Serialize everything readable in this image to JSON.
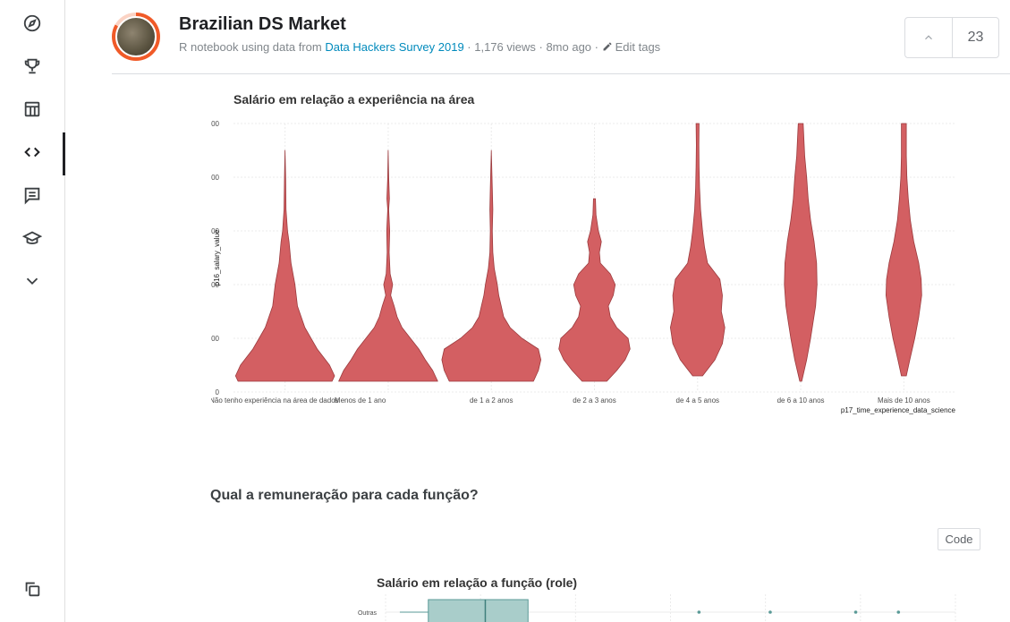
{
  "sidebar": {
    "items": [
      {
        "icon": "compass-icon"
      },
      {
        "icon": "trophy-icon"
      },
      {
        "icon": "table-icon"
      },
      {
        "icon": "code-icon",
        "active": true
      },
      {
        "icon": "comment-icon"
      },
      {
        "icon": "graduation-cap-icon"
      },
      {
        "icon": "chevron-down-icon"
      }
    ],
    "bottom_icon": "copy-icon"
  },
  "header": {
    "title": "Brazilian DS Market",
    "subtitle_prefix": "R notebook using data from ",
    "dataset_link": "Data Hackers Survey 2019",
    "views": " · 1,176 views · 8mo ago · ",
    "edit_tags": "Edit tags",
    "vote_count": "23"
  },
  "section_heading": "Qual a remuneração para cada função?",
  "code_button": "Code",
  "chart_data": [
    {
      "type": "violin",
      "title": "Salário em relação a experiência na área",
      "xlabel": "p17_time_experience_data_science",
      "ylabel": "p16_salary_value",
      "ylim": [
        0,
        25000
      ],
      "yticks": [
        0,
        5000,
        10000,
        15000,
        20000,
        25000
      ],
      "categories": [
        "Não tenho experiência na área de dados",
        "Menos de 1 ano",
        "de 1 a 2 anos",
        "de 2 a 3 anos",
        "de 4 a 5 anos",
        "de 6 a 10 anos",
        "Mais de 10 anos"
      ],
      "series": [
        {
          "range": [
            1000,
            22500
          ],
          "profile": [
            [
              1000,
              0.95
            ],
            [
              1500,
              1.0
            ],
            [
              2500,
              0.9
            ],
            [
              4000,
              0.65
            ],
            [
              6000,
              0.4
            ],
            [
              8000,
              0.25
            ],
            [
              10000,
              0.2
            ],
            [
              12000,
              0.12
            ],
            [
              14000,
              0.08
            ],
            [
              15000,
              0.05
            ],
            [
              17000,
              0.02
            ],
            [
              20000,
              0.012
            ],
            [
              22500,
              0
            ]
          ]
        },
        {
          "range": [
            1000,
            22500
          ],
          "profile": [
            [
              1000,
              1.0
            ],
            [
              2000,
              0.9
            ],
            [
              3000,
              0.75
            ],
            [
              4000,
              0.62
            ],
            [
              5000,
              0.45
            ],
            [
              6000,
              0.28
            ],
            [
              7000,
              0.18
            ],
            [
              8000,
              0.12
            ],
            [
              9000,
              0.05
            ],
            [
              10000,
              0.09
            ],
            [
              11000,
              0.04
            ],
            [
              13000,
              0.02
            ],
            [
              15000,
              0.03
            ],
            [
              17000,
              0.01
            ],
            [
              18000,
              0.025
            ],
            [
              20000,
              0.01
            ],
            [
              22500,
              0
            ]
          ]
        },
        {
          "range": [
            1000,
            22500
          ],
          "profile": [
            [
              1000,
              0.85
            ],
            [
              2000,
              0.95
            ],
            [
              3000,
              1.0
            ],
            [
              4000,
              0.95
            ],
            [
              5000,
              0.62
            ],
            [
              6000,
              0.38
            ],
            [
              7000,
              0.25
            ],
            [
              8000,
              0.2
            ],
            [
              9000,
              0.15
            ],
            [
              10000,
              0.12
            ],
            [
              11500,
              0.06
            ],
            [
              13000,
              0.03
            ],
            [
              15000,
              0.02
            ],
            [
              17000,
              0.03
            ],
            [
              19000,
              0.02
            ],
            [
              22500,
              0
            ]
          ]
        },
        {
          "range": [
            1000,
            18000
          ],
          "profile": [
            [
              1000,
              0.25
            ],
            [
              2000,
              0.45
            ],
            [
              3000,
              0.62
            ],
            [
              4000,
              0.72
            ],
            [
              5000,
              0.68
            ],
            [
              6000,
              0.45
            ],
            [
              7000,
              0.32
            ],
            [
              8000,
              0.28
            ],
            [
              9000,
              0.38
            ],
            [
              10000,
              0.42
            ],
            [
              11000,
              0.32
            ],
            [
              12000,
              0.12
            ],
            [
              13000,
              0.1
            ],
            [
              14000,
              0.14
            ],
            [
              15000,
              0.08
            ],
            [
              16500,
              0.03
            ],
            [
              18000,
              0.02
            ]
          ]
        },
        {
          "range": [
            1500,
            25000
          ],
          "profile": [
            [
              1500,
              0.1
            ],
            [
              3000,
              0.35
            ],
            [
              4500,
              0.5
            ],
            [
              6000,
              0.55
            ],
            [
              7500,
              0.48
            ],
            [
              9000,
              0.5
            ],
            [
              10500,
              0.45
            ],
            [
              12000,
              0.2
            ],
            [
              13500,
              0.14
            ],
            [
              15000,
              0.1
            ],
            [
              17000,
              0.06
            ],
            [
              19000,
              0.04
            ],
            [
              21000,
              0.03
            ],
            [
              23000,
              0.025
            ],
            [
              25000,
              0.03
            ]
          ]
        },
        {
          "range": [
            1000,
            25000
          ],
          "profile": [
            [
              1000,
              0.02
            ],
            [
              3000,
              0.12
            ],
            [
              5000,
              0.2
            ],
            [
              6500,
              0.25
            ],
            [
              8000,
              0.3
            ],
            [
              10000,
              0.33
            ],
            [
              12000,
              0.32
            ],
            [
              14000,
              0.27
            ],
            [
              16000,
              0.2
            ],
            [
              18000,
              0.15
            ],
            [
              20000,
              0.12
            ],
            [
              22000,
              0.08
            ],
            [
              25000,
              0.05
            ]
          ]
        },
        {
          "range": [
            1500,
            25000
          ],
          "profile": [
            [
              1500,
              0.05
            ],
            [
              3000,
              0.12
            ],
            [
              5000,
              0.22
            ],
            [
              7000,
              0.3
            ],
            [
              9000,
              0.36
            ],
            [
              10500,
              0.35
            ],
            [
              12000,
              0.3
            ],
            [
              14000,
              0.2
            ],
            [
              16000,
              0.13
            ],
            [
              18000,
              0.09
            ],
            [
              20000,
              0.06
            ],
            [
              22000,
              0.05
            ],
            [
              25000,
              0.05
            ]
          ]
        }
      ]
    },
    {
      "type": "boxplot",
      "title": "Salário em relação a função (role)",
      "categories": [
        "Outras"
      ],
      "series": [
        {
          "box": [
            3000,
            7000,
            10000
          ],
          "whisker_low": 1000,
          "outliers": [
            22000,
            27000,
            33000,
            36000
          ]
        }
      ],
      "xlim": [
        0,
        40000
      ]
    }
  ]
}
